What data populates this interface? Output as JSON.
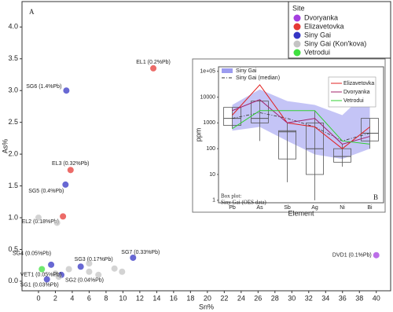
{
  "chart_data": [
    {
      "type": "scatter",
      "panel_label": "A",
      "xlabel": "Sn%",
      "ylabel": "As%",
      "xlim": [
        -1.95,
        41.7
      ],
      "ylim": [
        -0.15,
        4.4
      ],
      "xticks": [
        0,
        2,
        4,
        6,
        8,
        10,
        12,
        14,
        16,
        18,
        20,
        22,
        24,
        26,
        28,
        30,
        32,
        34,
        36,
        38,
        40
      ],
      "yticks": [
        {
          "value": 0,
          "label": "0.0"
        },
        0.5,
        {
          "value": 1,
          "label": "1.0"
        },
        1.5,
        {
          "value": 2,
          "label": "2.0"
        },
        2.5,
        {
          "value": 3,
          "label": "3.0"
        },
        3.5,
        {
          "value": 4,
          "label": "4.0"
        }
      ],
      "legend_title": "Site",
      "legend": "top-right",
      "series": [
        {
          "name": "Dvoryanka",
          "color": "#a53fe0",
          "x": [
            40
          ],
          "y": [
            0.41
          ],
          "labels": [
            "DVD1 (0.1%Pb)"
          ]
        },
        {
          "name": "Elizavetovka",
          "color": "#e53935",
          "x": [
            13.6,
            3.8,
            2.9
          ],
          "y": [
            3.35,
            1.75,
            1.02
          ],
          "labels": [
            "EL1 (0.2%Pb)",
            "EL3 (0.32%Pb)",
            "EL2 (0.18%Pb)"
          ]
        },
        {
          "name": "Siny Gai",
          "color": "#3535c4",
          "x": [
            3.3,
            3.2,
            1.5,
            5.0,
            11.2,
            2.7,
            1.0
          ],
          "y": [
            3.0,
            1.52,
            0.26,
            0.23,
            0.37,
            0.1,
            0.03
          ],
          "labels": [
            "SG6 (1.4%Pb)",
            "SG5 (0.4%Pb)",
            "SG4 (0.05%Pb)",
            "SG3 (0.17%Pb)",
            "SG7 (0.33%Pb)",
            "SG2 (0.04%Pb)",
            "SG1 (0.03%Pb)"
          ]
        },
        {
          "name": "Siny Gai (Kon'kova)",
          "color": "#c4c4c4",
          "x": [
            0,
            2.2,
            3.6,
            6,
            6,
            7.1,
            9,
            9.9,
            2.4,
            2
          ],
          "y": [
            1.0,
            0.92,
            0.19,
            0.28,
            0.15,
            0.1,
            0.2,
            0.15,
            0.07,
            0.12
          ]
        },
        {
          "name": "Vetrodui",
          "color": "#3fe03f",
          "x": [
            0.4
          ],
          "y": [
            0.19
          ],
          "labels": [
            "VET1 (0.05%Pb)"
          ]
        }
      ]
    },
    {
      "type": "line",
      "panel_label": "B",
      "xlabel": "Element",
      "ylabel": "ppm",
      "log_y": true,
      "categories": [
        "Pb",
        "As",
        "Sb",
        "Ag",
        "Ni",
        "Bi"
      ],
      "ylim": [
        0.8,
        150000
      ],
      "yticks": [
        1,
        10,
        100,
        1000,
        10000,
        {
          "value": 100000,
          "label": "1e+05"
        }
      ],
      "band": {
        "name": "Siny Gai",
        "color": "#9c9cf0",
        "min": [
          500,
          700,
          200,
          60,
          40,
          100
        ],
        "max": [
          5000,
          20000,
          7000,
          5000,
          2000,
          20000
        ]
      },
      "median": {
        "name": "Siny Gai (median)",
        "color": "#333333",
        "values": [
          1500,
          2500,
          1500,
          700,
          200,
          400
        ]
      },
      "boxes": {
        "title": "Box plot:",
        "name": "Siny Gai (OES data)",
        "color": "#555555",
        "min": [
          600,
          200,
          5,
          1,
          20,
          100
        ],
        "q1": [
          800,
          1000,
          40,
          10,
          30,
          200
        ],
        "median": [
          1500,
          1500,
          450,
          100,
          50,
          400
        ],
        "q3": [
          4000,
          7000,
          500,
          1000,
          100,
          1500
        ],
        "max": [
          4000,
          8000,
          1000,
          3000,
          150,
          1500
        ]
      },
      "series": [
        {
          "name": "Elizavetovka",
          "color": "#e02020",
          "values": [
            2000,
            30000,
            1000,
            700,
            100,
            700
          ]
        },
        {
          "name": "Dvoryanka",
          "color": "#a0206a",
          "values": [
            3000,
            8000,
            1000,
            1500,
            150,
            300
          ]
        },
        {
          "name": "Vetrodui",
          "color": "#30d030",
          "values": [
            600,
            3000,
            3000,
            3000,
            200,
            150
          ]
        }
      ]
    }
  ]
}
